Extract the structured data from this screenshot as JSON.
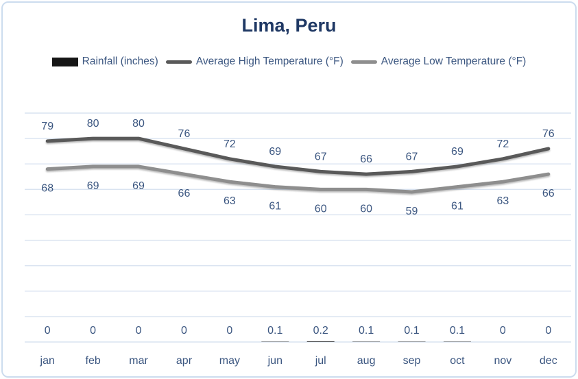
{
  "chart_data": {
    "type": "combo",
    "title": "Lima, Peru",
    "categories": [
      "jan",
      "feb",
      "mar",
      "apr",
      "may",
      "jun",
      "jul",
      "aug",
      "sep",
      "oct",
      "nov",
      "dec"
    ],
    "series": [
      {
        "name": "Rainfall (inches)",
        "type": "bar",
        "color": "#161616",
        "label_position": "base",
        "values": [
          0,
          0,
          0,
          0,
          0,
          0.1,
          0.2,
          0.1,
          0.1,
          0.1,
          0,
          0
        ]
      },
      {
        "name": "Average High Temperature (°F)",
        "type": "line",
        "color": "#595959",
        "label_position": "above",
        "values": [
          79,
          80,
          80,
          76,
          72,
          69,
          67,
          66,
          67,
          69,
          72,
          76
        ]
      },
      {
        "name": "Average Low Temperature (°F)",
        "type": "line",
        "color": "#8e8e8e",
        "label_position": "below",
        "values": [
          68,
          69,
          69,
          66,
          63,
          61,
          60,
          60,
          59,
          61,
          63,
          66
        ]
      }
    ],
    "ylim": [
      0,
      90
    ],
    "gridline_step": 10,
    "grid": true,
    "y_axis_labels_visible": false,
    "legend_position": "top"
  },
  "colors": {
    "title": "#1f3864",
    "label": "#3b5680",
    "gridline": "#d9e3f0",
    "frame_border": "#ccdcee",
    "background": "#ffffff"
  }
}
